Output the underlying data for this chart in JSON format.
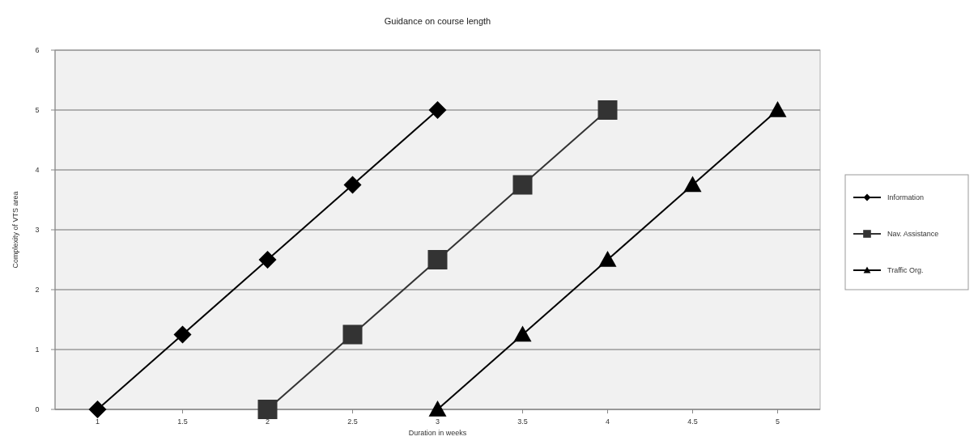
{
  "chart_data": {
    "type": "line",
    "title": "Guidance on course length",
    "xlabel": "Duration in weeks",
    "ylabel": "Complexity of VTS area",
    "xlim": [
      0.75,
      5.25
    ],
    "xticks": [
      1,
      1.5,
      2,
      2.5,
      3,
      3.5,
      4,
      4.5,
      5
    ],
    "ylim": [
      0,
      6
    ],
    "yticks": [
      0,
      1,
      2,
      3,
      4,
      5,
      6
    ],
    "grid": "y",
    "legend": "right",
    "series": [
      {
        "name": "Information",
        "color": "#000000",
        "marker": "diamond",
        "x": [
          1,
          1.5,
          2,
          2.5,
          3
        ],
        "values": [
          0,
          1.25,
          2.5,
          3.75,
          5
        ]
      },
      {
        "name": "Nav. Assistance",
        "color": "#333333",
        "marker": "square",
        "x": [
          2,
          2.5,
          3,
          3.5,
          4
        ],
        "values": [
          0,
          1.25,
          2.5,
          3.75,
          5
        ]
      },
      {
        "name": "Traffic Org.",
        "color": "#000000",
        "marker": "triangle",
        "x": [
          3,
          3.5,
          4,
          4.5,
          5
        ],
        "values": [
          0,
          1.25,
          2.5,
          3.75,
          5
        ]
      }
    ]
  }
}
